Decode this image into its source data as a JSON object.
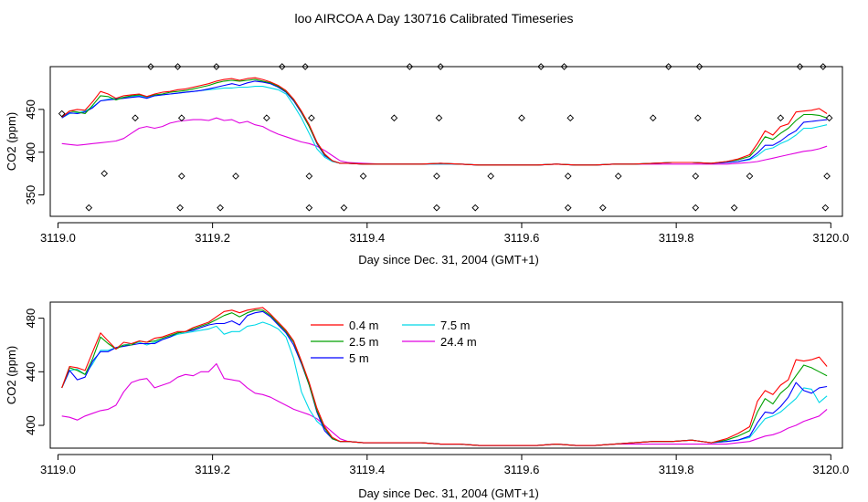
{
  "figure": {
    "title": "loo AIRCOA A  Day 130716  Calibrated Timeseries"
  },
  "chart_data": [
    {
      "type": "scatter+line",
      "xlabel": "Day since Dec. 31, 2004 (GMT+1)",
      "ylabel": "CO2 (ppm)",
      "xlim": [
        3118.99,
        3120.015
      ],
      "ylim": [
        325,
        500
      ],
      "xticks": [
        3119.0,
        3119.2,
        3119.4,
        3119.6,
        3119.8,
        3120.0
      ],
      "xtick_labels": [
        "3119.0",
        "3119.2",
        "3119.4",
        "3119.6",
        "3119.8",
        "3120.0"
      ],
      "yticks": [
        350,
        400,
        450
      ],
      "ytick_labels": [
        "350",
        "400",
        "450"
      ],
      "grid": false,
      "legend": "none",
      "markers": {
        "style": "open-diamond",
        "x": [
          3119.005,
          3119.04,
          3119.06,
          3119.1,
          3119.12,
          3119.155,
          3119.158,
          3119.16,
          3119.16,
          3119.205,
          3119.21,
          3119.23,
          3119.27,
          3119.29,
          3119.32,
          3119.325,
          3119.325,
          3119.328,
          3119.37,
          3119.395,
          3119.435,
          3119.455,
          3119.49,
          3119.49,
          3119.493,
          3119.495,
          3119.54,
          3119.56,
          3119.6,
          3119.625,
          3119.655,
          3119.66,
          3119.66,
          3119.663,
          3119.705,
          3119.725,
          3119.77,
          3119.79,
          3119.825,
          3119.825,
          3119.828,
          3119.83,
          3119.875,
          3119.895,
          3119.935,
          3119.96,
          3119.99,
          3119.993,
          3119.995,
          3119.998
        ],
        "y": [
          445,
          335,
          375,
          440,
          500,
          500,
          335,
          372,
          440,
          500,
          335,
          372,
          440,
          500,
          500,
          335,
          372,
          440,
          335,
          372,
          440,
          500,
          335,
          372,
          440,
          500,
          335,
          372,
          440,
          500,
          500,
          335,
          372,
          440,
          335,
          372,
          440,
          500,
          335,
          372,
          440,
          500,
          335,
          372,
          440,
          500,
          500,
          335,
          372,
          440
        ]
      },
      "series_colors": [
        "#ff0000",
        "#00a000",
        "#0000ff",
        "#00d8e8",
        "#e000e0"
      ],
      "x": [
        3119.005,
        3119.015,
        3119.025,
        3119.035,
        3119.045,
        3119.055,
        3119.065,
        3119.075,
        3119.085,
        3119.095,
        3119.105,
        3119.115,
        3119.125,
        3119.135,
        3119.145,
        3119.155,
        3119.165,
        3119.175,
        3119.185,
        3119.195,
        3119.205,
        3119.215,
        3119.225,
        3119.235,
        3119.245,
        3119.255,
        3119.265,
        3119.275,
        3119.285,
        3119.295,
        3119.305,
        3119.315,
        3119.325,
        3119.335,
        3119.345,
        3119.355,
        3119.365,
        3119.375,
        3119.395,
        3119.42,
        3119.445,
        3119.47,
        3119.495,
        3119.52,
        3119.545,
        3119.57,
        3119.595,
        3119.62,
        3119.645,
        3119.67,
        3119.695,
        3119.72,
        3119.745,
        3119.77,
        3119.795,
        3119.82,
        3119.845,
        3119.865,
        3119.88,
        3119.895,
        3119.905,
        3119.915,
        3119.925,
        3119.935,
        3119.945,
        3119.955,
        3119.965,
        3119.975,
        3119.985,
        3119.995
      ],
      "series": [
        {
          "values": [
            441,
            448,
            450,
            449,
            459,
            471,
            468,
            463,
            466,
            467,
            468,
            465,
            468,
            470,
            471,
            473,
            474,
            476,
            478,
            480,
            483,
            485,
            486,
            484,
            486,
            487,
            485,
            482,
            478,
            472,
            462,
            448,
            432,
            412,
            398,
            390,
            387,
            387,
            386,
            386,
            386,
            386,
            387,
            386,
            385,
            385,
            385,
            385,
            386,
            385,
            385,
            386,
            386,
            387,
            388,
            388,
            387,
            389,
            392,
            397,
            410,
            425,
            420,
            430,
            433,
            447,
            448,
            449,
            451,
            445
          ]
        },
        {
          "values": [
            441,
            448,
            447,
            445,
            455,
            466,
            465,
            461,
            464,
            466,
            467,
            465,
            467,
            468,
            470,
            471,
            472,
            474,
            476,
            478,
            481,
            483,
            484,
            483,
            484,
            485,
            483,
            481,
            477,
            471,
            461,
            447,
            430,
            411,
            397,
            390,
            387,
            387,
            386,
            386,
            386,
            386,
            387,
            386,
            385,
            385,
            385,
            385,
            386,
            385,
            385,
            386,
            386,
            387,
            388,
            388,
            387,
            389,
            391,
            395,
            405,
            418,
            415,
            422,
            428,
            437,
            444,
            444,
            443,
            440
          ]
        },
        {
          "values": [
            440,
            446,
            445,
            447,
            452,
            460,
            461,
            462,
            463,
            464,
            465,
            463,
            466,
            467,
            468,
            469,
            470,
            471,
            472,
            474,
            476,
            478,
            480,
            478,
            481,
            483,
            482,
            480,
            476,
            470,
            460,
            446,
            430,
            410,
            396,
            390,
            387,
            387,
            386,
            386,
            386,
            386,
            387,
            386,
            385,
            385,
            385,
            385,
            386,
            385,
            385,
            386,
            386,
            387,
            388,
            388,
            387,
            388,
            389,
            392,
            399,
            408,
            408,
            413,
            420,
            425,
            435,
            436,
            437,
            438
          ]
        },
        {
          "values": [
            440,
            445,
            446,
            448,
            453,
            460,
            462,
            463,
            464,
            465,
            466,
            464,
            466,
            467,
            468,
            469,
            470,
            471,
            472,
            473,
            474,
            475,
            475,
            476,
            476,
            477,
            477,
            475,
            473,
            468,
            455,
            440,
            422,
            404,
            394,
            389,
            387,
            387,
            386,
            386,
            386,
            386,
            386,
            386,
            385,
            385,
            385,
            385,
            386,
            385,
            385,
            386,
            386,
            387,
            388,
            388,
            387,
            388,
            389,
            391,
            396,
            403,
            405,
            410,
            414,
            420,
            428,
            428,
            430,
            432
          ]
        },
        {
          "values": [
            410,
            409,
            408,
            409,
            410,
            411,
            412,
            413,
            416,
            422,
            428,
            430,
            428,
            430,
            434,
            436,
            437,
            438,
            438,
            437,
            440,
            437,
            438,
            434,
            436,
            432,
            430,
            425,
            421,
            418,
            415,
            412,
            410,
            407,
            402,
            396,
            390,
            388,
            387,
            386,
            386,
            386,
            386,
            386,
            385,
            385,
            385,
            385,
            386,
            385,
            385,
            386,
            386,
            386,
            386,
            386,
            386,
            386,
            387,
            388,
            389,
            391,
            393,
            395,
            397,
            399,
            401,
            402,
            404,
            407
          ]
        }
      ]
    },
    {
      "type": "line",
      "xlabel": "Day since Dec. 31, 2004 (GMT+1)",
      "ylabel": "CO2 (ppm)",
      "xlim": [
        3118.99,
        3120.015
      ],
      "ylim": [
        383,
        492
      ],
      "xticks": [
        3119.0,
        3119.2,
        3119.4,
        3119.6,
        3119.8,
        3120.0
      ],
      "xtick_labels": [
        "3119.0",
        "3119.2",
        "3119.4",
        "3119.6",
        "3119.8",
        "3120.0"
      ],
      "yticks": [
        400,
        440,
        480
      ],
      "ytick_labels": [
        "400",
        "440",
        "480"
      ],
      "grid": false,
      "legend": "top-center",
      "x": [
        3119.005,
        3119.015,
        3119.025,
        3119.035,
        3119.045,
        3119.055,
        3119.065,
        3119.075,
        3119.085,
        3119.095,
        3119.105,
        3119.115,
        3119.125,
        3119.135,
        3119.145,
        3119.155,
        3119.165,
        3119.175,
        3119.185,
        3119.195,
        3119.205,
        3119.215,
        3119.225,
        3119.235,
        3119.245,
        3119.255,
        3119.265,
        3119.275,
        3119.285,
        3119.295,
        3119.305,
        3119.315,
        3119.325,
        3119.335,
        3119.345,
        3119.355,
        3119.365,
        3119.375,
        3119.395,
        3119.42,
        3119.445,
        3119.47,
        3119.495,
        3119.52,
        3119.545,
        3119.57,
        3119.595,
        3119.62,
        3119.645,
        3119.67,
        3119.695,
        3119.72,
        3119.745,
        3119.77,
        3119.795,
        3119.82,
        3119.845,
        3119.865,
        3119.88,
        3119.895,
        3119.905,
        3119.915,
        3119.925,
        3119.935,
        3119.945,
        3119.955,
        3119.965,
        3119.975,
        3119.985,
        3119.995
      ],
      "series": [
        {
          "name": "0.4 m",
          "color": "#ff0000",
          "values": [
            428,
            444,
            443,
            441,
            455,
            469,
            463,
            457,
            462,
            461,
            463,
            462,
            465,
            466,
            468,
            470,
            470,
            473,
            475,
            477,
            481,
            485,
            486,
            484,
            486,
            487,
            488,
            483,
            477,
            471,
            463,
            448,
            432,
            413,
            399,
            391,
            388,
            388,
            387,
            387,
            387,
            387,
            386,
            386,
            385,
            385,
            385,
            385,
            386,
            385,
            385,
            386,
            387,
            388,
            388,
            389,
            387,
            390,
            394,
            399,
            418,
            426,
            423,
            430,
            434,
            449,
            448,
            449,
            451,
            444
          ]
        },
        {
          "name": "2.5 m",
          "color": "#00a000",
          "values": [
            428,
            443,
            441,
            438,
            450,
            466,
            461,
            457,
            460,
            460,
            463,
            462,
            463,
            465,
            467,
            469,
            470,
            472,
            474,
            476,
            479,
            482,
            484,
            481,
            484,
            486,
            486,
            482,
            476,
            470,
            462,
            447,
            430,
            411,
            398,
            390,
            388,
            388,
            387,
            387,
            387,
            387,
            386,
            386,
            385,
            385,
            385,
            385,
            386,
            385,
            385,
            386,
            387,
            388,
            388,
            389,
            387,
            389,
            392,
            396,
            410,
            420,
            416,
            424,
            429,
            437,
            445,
            443,
            440,
            437
          ]
        },
        {
          "name": "5 m",
          "color": "#0000ff",
          "values": [
            428,
            441,
            434,
            436,
            448,
            455,
            455,
            458,
            459,
            460,
            461,
            461,
            461,
            464,
            466,
            469,
            470,
            471,
            473,
            475,
            476,
            476,
            478,
            475,
            482,
            484,
            485,
            481,
            475,
            469,
            460,
            446,
            430,
            410,
            396,
            390,
            388,
            388,
            387,
            387,
            387,
            387,
            386,
            386,
            385,
            385,
            385,
            385,
            386,
            385,
            385,
            386,
            387,
            388,
            388,
            389,
            387,
            388,
            389,
            392,
            402,
            410,
            409,
            414,
            421,
            432,
            426,
            424,
            428,
            429
          ]
        },
        {
          "name": "7.5 m",
          "color": "#00d8e8",
          "values": [
            428,
            441,
            442,
            438,
            446,
            456,
            456,
            458,
            460,
            461,
            462,
            460,
            462,
            464,
            466,
            468,
            469,
            470,
            471,
            472,
            474,
            468,
            470,
            470,
            474,
            475,
            477,
            475,
            472,
            466,
            450,
            425,
            412,
            403,
            398,
            390,
            388,
            388,
            387,
            387,
            387,
            387,
            386,
            386,
            385,
            385,
            385,
            385,
            386,
            385,
            385,
            386,
            387,
            388,
            388,
            389,
            387,
            388,
            389,
            391,
            398,
            405,
            407,
            410,
            415,
            420,
            428,
            427,
            417,
            422
          ]
        },
        {
          "name": "24.4 m",
          "color": "#e000e0",
          "values": [
            407,
            406,
            404,
            407,
            409,
            411,
            412,
            415,
            425,
            432,
            434,
            435,
            428,
            430,
            432,
            436,
            438,
            437,
            440,
            440,
            446,
            435,
            434,
            433,
            428,
            424,
            423,
            421,
            418,
            415,
            412,
            410,
            408,
            405,
            400,
            395,
            390,
            388,
            387,
            387,
            387,
            387,
            386,
            386,
            385,
            385,
            385,
            385,
            386,
            385,
            385,
            386,
            386,
            386,
            386,
            386,
            386,
            386,
            387,
            388,
            390,
            392,
            393,
            395,
            398,
            400,
            403,
            405,
            407,
            412
          ]
        }
      ]
    }
  ]
}
